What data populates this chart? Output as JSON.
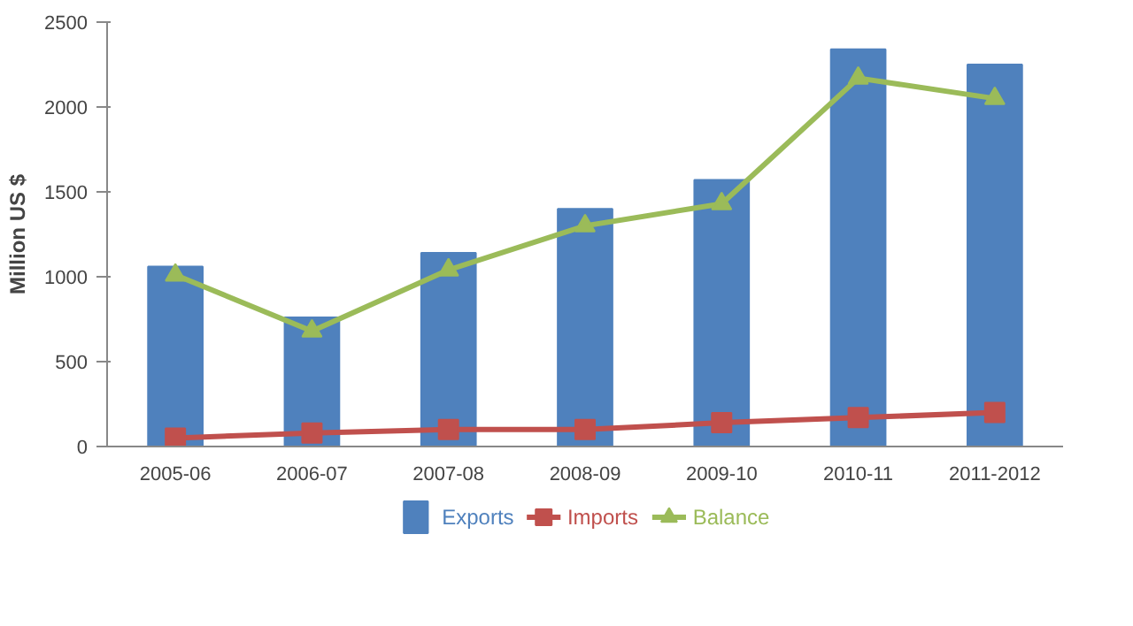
{
  "chart_data": {
    "type": "bar",
    "ylabel": "Million US $",
    "categories": [
      "2005-06",
      "2006-07",
      "2007-08",
      "2008-09",
      "2009-10",
      "2010-11",
      "2011-2012"
    ],
    "series": [
      {
        "name": "Exports",
        "color": "#4f81bd",
        "values": [
          1060,
          760,
          1140,
          1400,
          1570,
          2340,
          2250
        ]
      },
      {
        "name": "Imports",
        "color": "#c0504d",
        "type": "line",
        "marker": "square",
        "values": [
          50,
          80,
          100,
          100,
          140,
          170,
          200
        ]
      },
      {
        "name": "Balance",
        "color": "#9bbb59",
        "type": "line",
        "marker": "triangle",
        "values": [
          1010,
          680,
          1040,
          1300,
          1430,
          2170,
          2050
        ]
      }
    ],
    "ylim": [
      0,
      2500
    ],
    "yticks": [
      0,
      500,
      1000,
      1500,
      2000,
      2500
    ],
    "grid": false,
    "legend": "bottom"
  }
}
